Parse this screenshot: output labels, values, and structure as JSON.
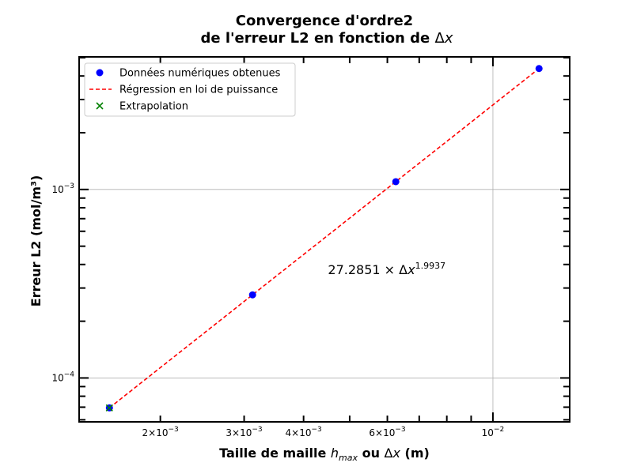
{
  "chart_data": {
    "type": "scatter",
    "title_line1": "Convergence d'ordre2",
    "title_line2": "de l'erreur L2 en fonction de Δx",
    "xlabel": "Taille de maille h_max ou Δx (m)",
    "ylabel": "Erreur L2 (mol/m³)",
    "xscale": "log",
    "yscale": "log",
    "xlim": [
      0.00135,
      0.0145
    ],
    "ylim": [
      5.85e-05,
      0.00505
    ],
    "grid": true,
    "legend_position": "top-left",
    "x_ticks": [
      {
        "value": 0.002,
        "mant": "2",
        "exp": "−3"
      },
      {
        "value": 0.003,
        "mant": "3",
        "exp": "−3"
      },
      {
        "value": 0.004,
        "mant": "4",
        "exp": "−3"
      },
      {
        "value": 0.006,
        "mant": "6",
        "exp": "−3"
      },
      {
        "value": 0.01,
        "mant": "",
        "exp": "−2"
      }
    ],
    "y_ticks": [
      {
        "value": 0.0001,
        "exp": "−4"
      },
      {
        "value": 0.001,
        "exp": "−3"
      }
    ],
    "series": [
      {
        "name": "Données numériques obtenues",
        "kind": "scatter",
        "marker": "circle",
        "color": "#0000ff",
        "x": [
          0.001563,
          0.003125,
          0.00625,
          0.0125
        ],
        "y": [
          6.94e-05,
          0.000276,
          0.0011,
          0.00438
        ]
      },
      {
        "name": "Régression en loi de puissance",
        "kind": "line",
        "style": "dashed",
        "color": "#ff0000",
        "x": [
          0.001563,
          0.0125
        ],
        "y": [
          6.94e-05,
          0.00438
        ]
      },
      {
        "name": "Extrapolation",
        "kind": "scatter",
        "marker": "x",
        "color": "#008000",
        "x": [
          0.001563
        ],
        "y": [
          6.94e-05
        ]
      }
    ],
    "annotation": {
      "coef": "27.2851",
      "exponent": "1.9937",
      "x": 0.0045,
      "y": 0.000355
    }
  }
}
